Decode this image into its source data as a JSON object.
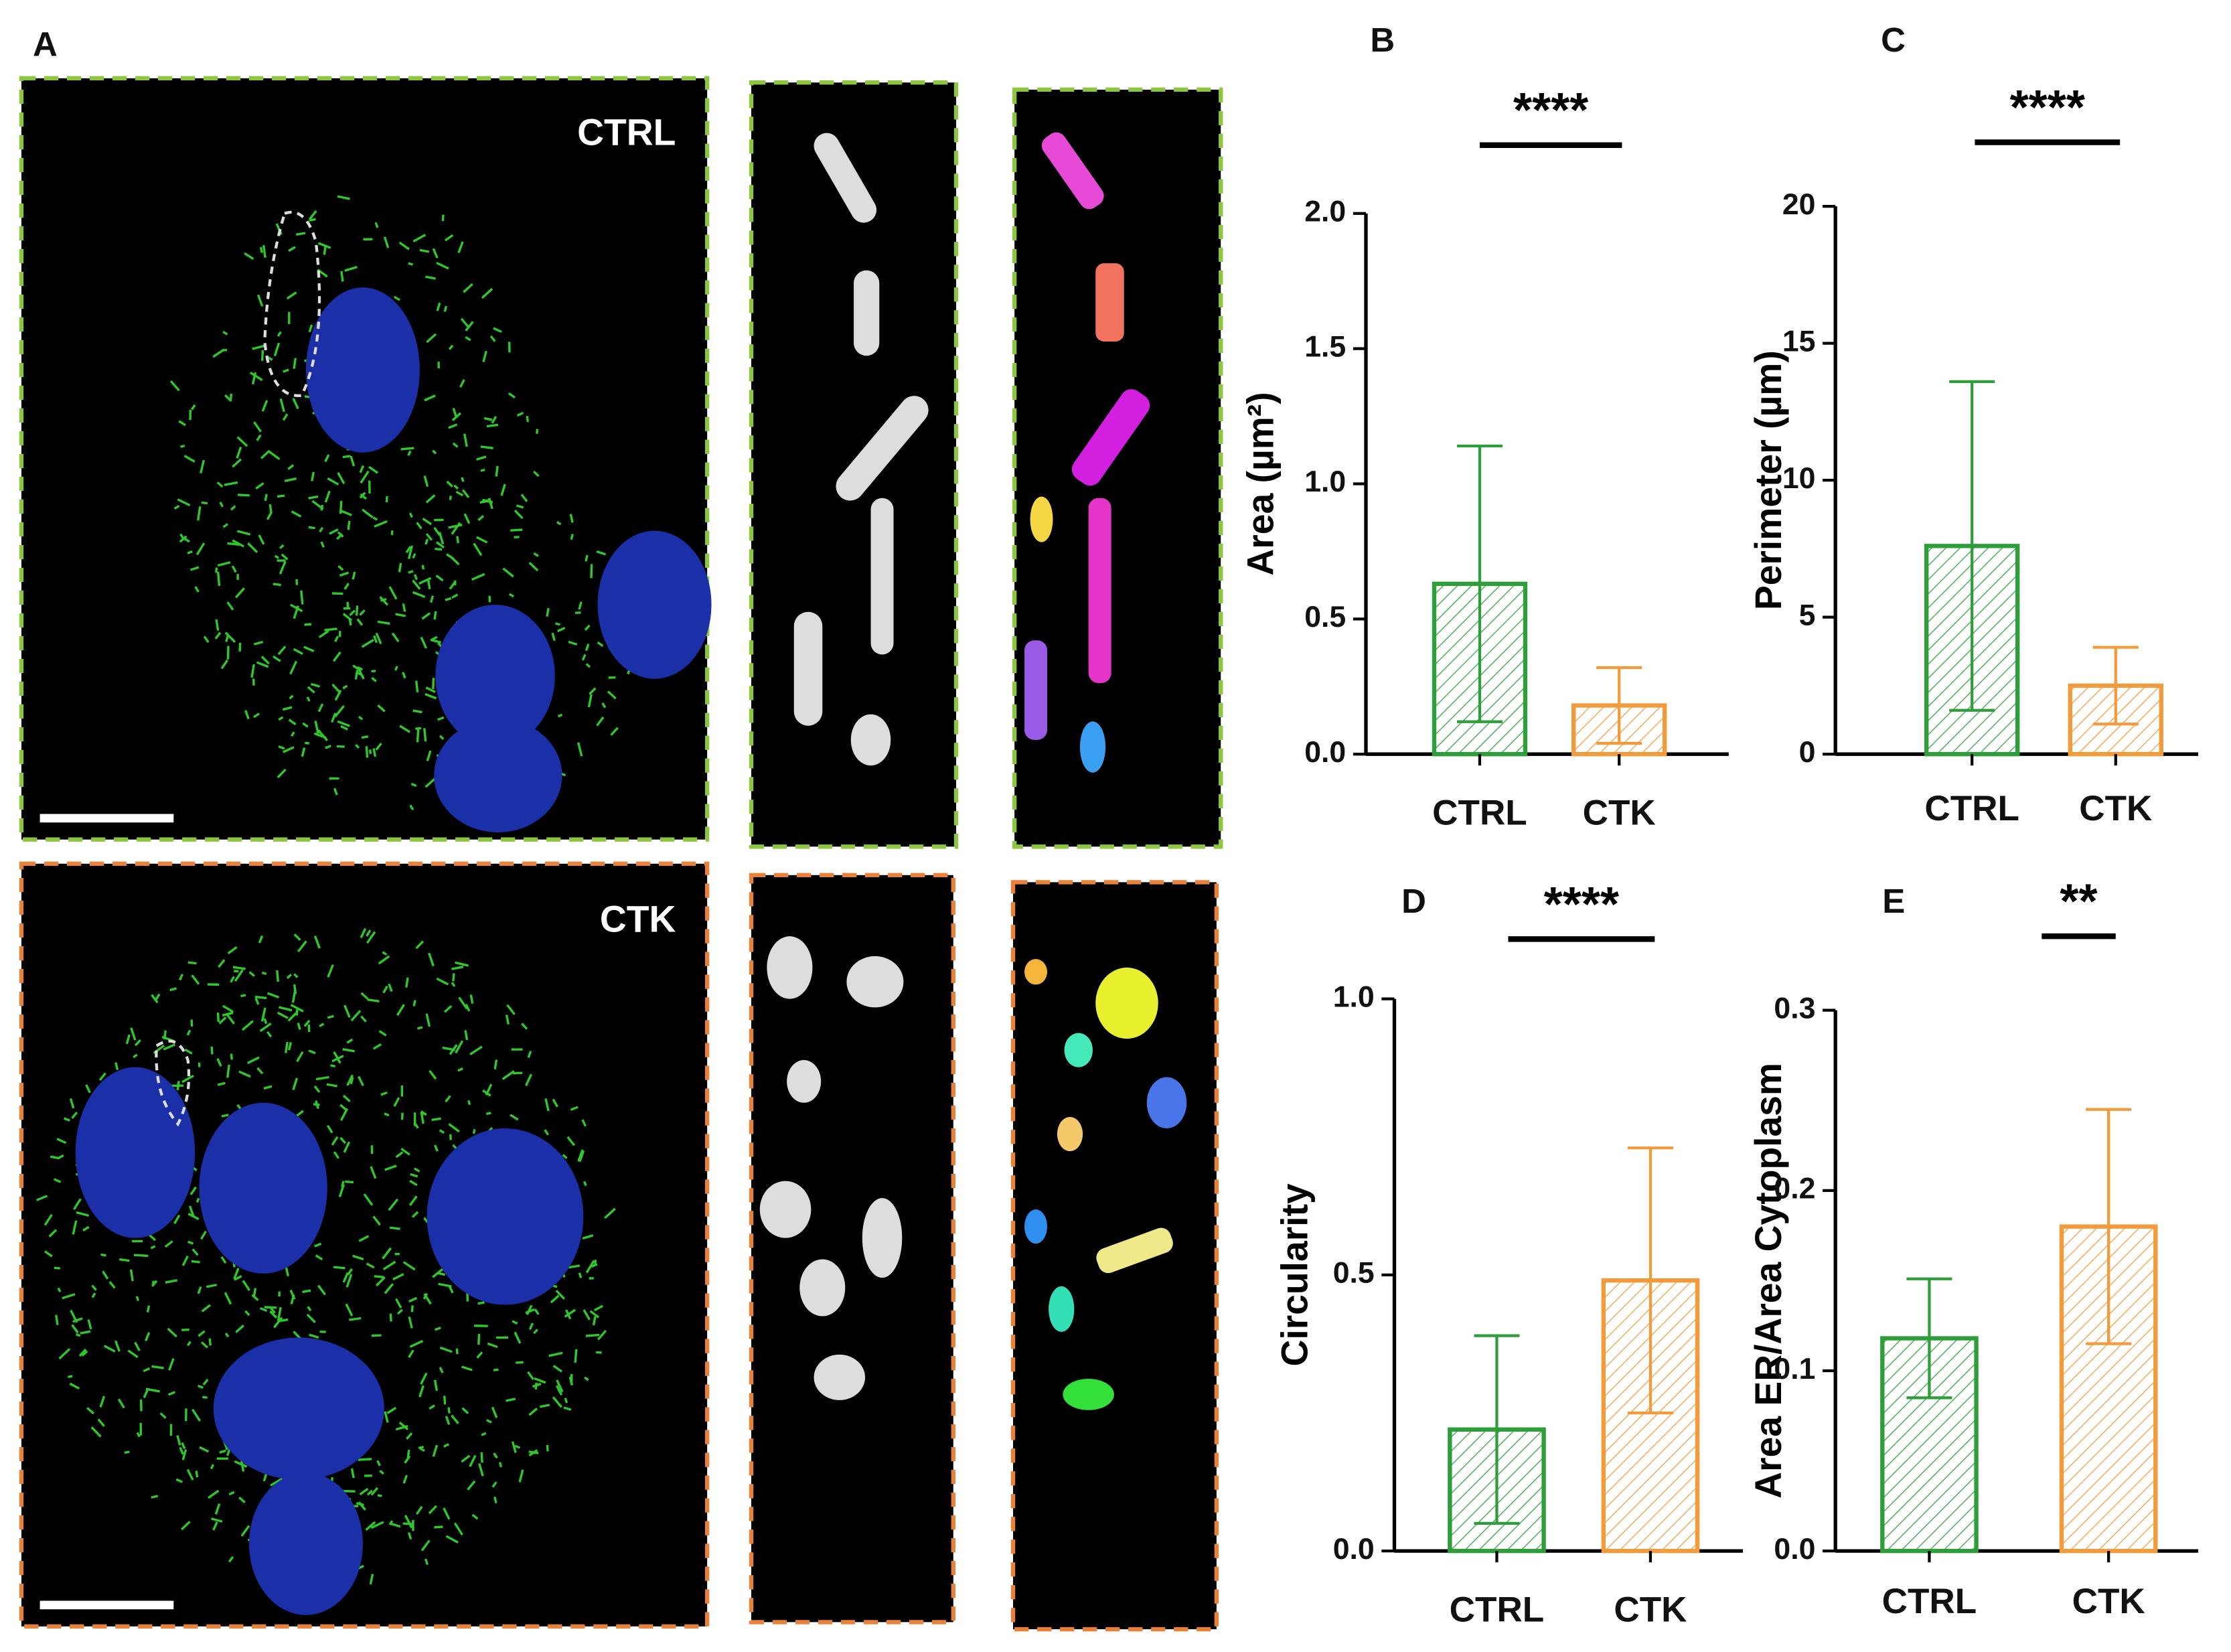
{
  "panel_a": {
    "label": "A",
    "rows": [
      "CTRL",
      "CTK"
    ]
  },
  "chart_data": [
    {
      "type": "bar",
      "panel": "B",
      "ylabel": "Area (µm²)",
      "significance": "****",
      "categories": [
        "CTRL",
        "CTK"
      ],
      "values": [
        0.63,
        0.18
      ],
      "errors": [
        0.51,
        0.14
      ],
      "colors": [
        "#2e9e3a",
        "#f39a3a"
      ],
      "ylim": [
        0,
        2
      ],
      "yticks": [
        {
          "value": 0,
          "label": "0.0"
        },
        {
          "value": 0.5,
          "label": "0.5"
        },
        {
          "value": 1,
          "label": "1.0"
        },
        {
          "value": 1.5,
          "label": "1.5"
        },
        {
          "value": 2,
          "label": "2.0"
        }
      ]
    },
    {
      "type": "bar",
      "panel": "C",
      "ylabel": "Perimeter (µm)",
      "significance": "****",
      "categories": [
        "CTRL",
        "CTK"
      ],
      "values": [
        7.6,
        2.5
      ],
      "errors": [
        6.0,
        1.4
      ],
      "colors": [
        "#2e9e3a",
        "#f39a3a"
      ],
      "ylim": [
        0,
        20
      ],
      "yticks": [
        0,
        5,
        10,
        15,
        20
      ]
    },
    {
      "type": "bar",
      "panel": "D",
      "ylabel": "Circularity",
      "significance": "****",
      "categories": [
        "CTRL",
        "CTK"
      ],
      "values": [
        0.22,
        0.49
      ],
      "errors": [
        0.17,
        0.24
      ],
      "colors": [
        "#2e9e3a",
        "#f39a3a"
      ],
      "ylim": [
        0,
        1
      ],
      "yticks": [
        {
          "value": 0,
          "label": "0.0"
        },
        {
          "value": 0.5,
          "label": "0.5"
        },
        {
          "value": 1,
          "label": "1.0"
        }
      ]
    },
    {
      "type": "bar",
      "panel": "E",
      "ylabel": "Area ER/Area Cytoplasm",
      "significance": "**",
      "categories": [
        "CTRL",
        "CTK"
      ],
      "values": [
        0.118,
        0.18
      ],
      "errors": [
        0.033,
        0.065
      ],
      "colors": [
        "#2e9e3a",
        "#f39a3a"
      ],
      "ylim": [
        0,
        0.3
      ],
      "yticks": [
        {
          "value": 0,
          "label": "0.0"
        },
        {
          "value": 0.1,
          "label": "0.1"
        },
        {
          "value": 0.2,
          "label": "0.2"
        },
        {
          "value": 0.3,
          "label": "0.3"
        }
      ]
    }
  ]
}
